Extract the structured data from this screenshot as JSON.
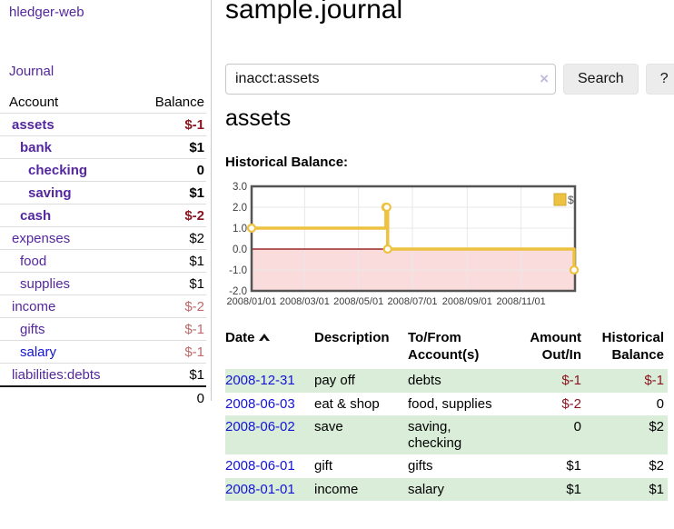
{
  "app": {
    "brand": "hledger-web",
    "nav": {
      "journal": "Journal"
    }
  },
  "sidebar": {
    "header": {
      "account": "Account",
      "balance": "Balance"
    },
    "rows": [
      {
        "label": "assets",
        "balance": "$-1",
        "depth": 1,
        "bold": true,
        "link": "purple",
        "balance_color": "darkred"
      },
      {
        "label": "bank",
        "balance": "$1",
        "depth": 2,
        "bold": true,
        "link": "purple",
        "balance_color": "black"
      },
      {
        "label": "checking",
        "balance": "0",
        "depth": 3,
        "bold": true,
        "link": "purple",
        "balance_color": "black"
      },
      {
        "label": "saving",
        "balance": "$1",
        "depth": 3,
        "bold": true,
        "link": "purple",
        "balance_color": "black"
      },
      {
        "label": "cash",
        "balance": "$-2",
        "depth": 2,
        "bold": true,
        "link": "purple",
        "balance_color": "darkred"
      },
      {
        "label": "expenses",
        "balance": "$2",
        "depth": 1,
        "bold": false,
        "link": "purple",
        "balance_color": "black"
      },
      {
        "label": "food",
        "balance": "$1",
        "depth": 2,
        "bold": false,
        "link": "purple",
        "balance_color": "black"
      },
      {
        "label": "supplies",
        "balance": "$1",
        "depth": 2,
        "bold": false,
        "link": "purple",
        "balance_color": "black"
      },
      {
        "label": "income",
        "balance": "$-2",
        "depth": 1,
        "bold": false,
        "link": "purple",
        "balance_color": "rose"
      },
      {
        "label": "gifts",
        "balance": "$-1",
        "depth": 2,
        "bold": false,
        "link": "purple",
        "balance_color": "rose"
      },
      {
        "label": "salary",
        "balance": "$-1",
        "depth": 2,
        "bold": false,
        "link": "blue",
        "balance_color": "rose"
      },
      {
        "label": "liabilities:debts",
        "balance": "$1",
        "depth": 1,
        "bold": false,
        "link": "purple",
        "balance_color": "black"
      }
    ],
    "total": "0"
  },
  "header": {
    "title": "sample.journal"
  },
  "search": {
    "value": "inacct:assets",
    "clear_icon": "×",
    "button": "Search",
    "help_button": "?"
  },
  "report": {
    "title": "assets",
    "chart_label": "Historical Balance:"
  },
  "chart_data": {
    "type": "line",
    "style": "step-after",
    "title": "Historical Balance",
    "series": [
      {
        "name": "$",
        "points": [
          {
            "date": "2008-01-01",
            "value": 1
          },
          {
            "date": "2008-06-01",
            "value": 2
          },
          {
            "date": "2008-06-02",
            "value": 2
          },
          {
            "date": "2008-06-03",
            "value": 0
          },
          {
            "date": "2008-12-31",
            "value": -1
          }
        ]
      }
    ],
    "x_range": [
      "2008-01-01",
      "2009-01-01"
    ],
    "ylim": [
      -2,
      3
    ],
    "yticks": [
      {
        "value": 3,
        "label": "3.0"
      },
      {
        "value": 2,
        "label": "2.0"
      },
      {
        "value": 1,
        "label": "1.0"
      },
      {
        "value": 0,
        "label": "0.0"
      },
      {
        "value": -1,
        "label": "-1.0"
      },
      {
        "value": -2,
        "label": "-2.0"
      }
    ],
    "xticks": [
      {
        "date": "2008-01-01",
        "label": "2008/01/01"
      },
      {
        "date": "2008-03-01",
        "label": "2008/03/01"
      },
      {
        "date": "2008-05-01",
        "label": "2008/05/01"
      },
      {
        "date": "2008-07-01",
        "label": "2008/07/01"
      },
      {
        "date": "2008-09-01",
        "label": "2008/09/01"
      },
      {
        "date": "2008-11-01",
        "label": "2008/11/01"
      }
    ],
    "legend": {
      "position": "top-right",
      "label": "$"
    },
    "grid": true,
    "colors": {
      "line": "#edc240",
      "marker_fill": "#ffffff",
      "negative_region": "#fbdcdc",
      "zero_line": "#8b0000",
      "grid": "#e8e8e8",
      "border": "#545454",
      "tick_text": "#3c3c3c"
    }
  },
  "register": {
    "headers": {
      "date": "Date",
      "description": "Description",
      "accounts": "To/From Account(s)",
      "amount": "Amount Out/In",
      "balance": "Historical Balance"
    },
    "sort": {
      "column": "date",
      "direction": "asc"
    },
    "rows": [
      {
        "date": "2008-12-31",
        "description": "pay off",
        "accounts": "debts",
        "amount": "$-1",
        "amount_neg": true,
        "balance": "$-1",
        "balance_neg": true,
        "green": true
      },
      {
        "date": "2008-06-03",
        "description": "eat & shop",
        "accounts": "food, supplies",
        "amount": "$-2",
        "amount_neg": true,
        "balance": "0",
        "balance_neg": false,
        "green": false
      },
      {
        "date": "2008-06-02",
        "description": "save",
        "accounts": "saving, checking",
        "amount": "0",
        "amount_neg": false,
        "balance": "$2",
        "balance_neg": false,
        "green": true
      },
      {
        "date": "2008-06-01",
        "description": "gift",
        "accounts": "gifts",
        "amount": "$1",
        "amount_neg": false,
        "balance": "$2",
        "balance_neg": false,
        "green": false
      },
      {
        "date": "2008-01-01",
        "description": "income",
        "accounts": "salary",
        "amount": "$1",
        "amount_neg": false,
        "balance": "$1",
        "balance_neg": false,
        "green": true
      }
    ]
  }
}
